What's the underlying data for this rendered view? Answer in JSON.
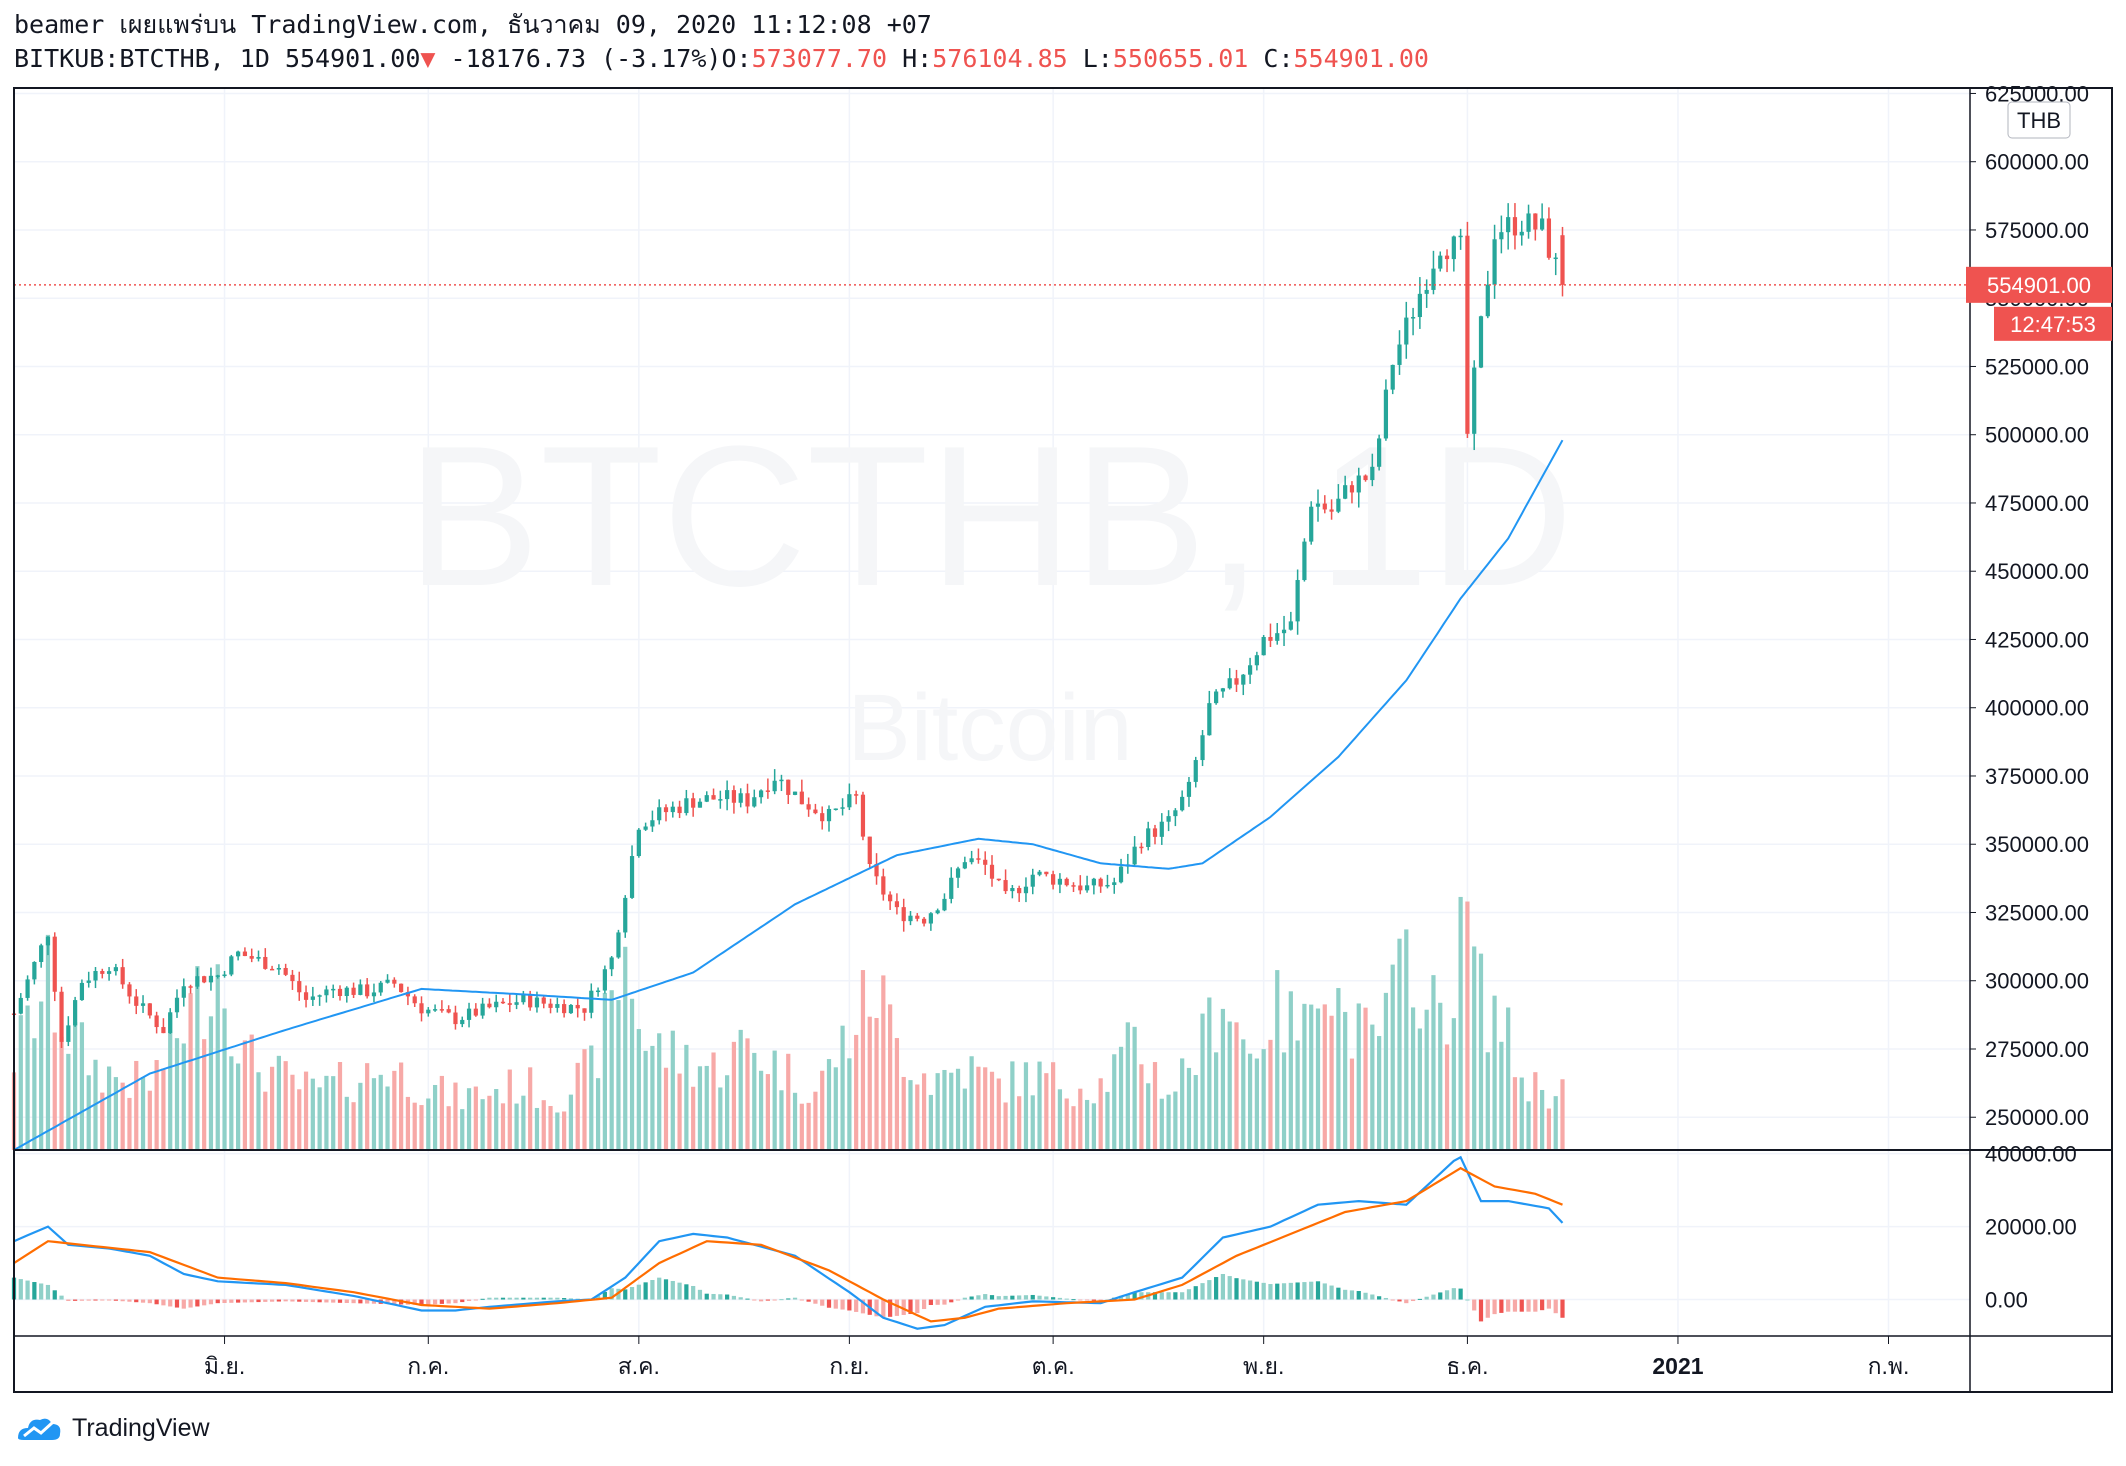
{
  "header": {
    "publish_line": "beamer เผยแพร่บน TradingView.com, ธันวาคม 09, 2020 11:12:08 +07",
    "symbol": "BITKUB:BTCTHB, 1D",
    "last": "554901.00",
    "arrow": "▼",
    "change": "-18176.73 (-3.17%)",
    "o_label": "O:",
    "o_value": "573077.70",
    "h_label": "H:",
    "h_value": "576104.85",
    "l_label": "L:",
    "l_value": "550655.01",
    "c_label": "C:",
    "c_value": "554901.00"
  },
  "watermark": {
    "symbol": "BTCTHB, 1D",
    "name": "Bitcoin"
  },
  "currency_badge": "THB",
  "price_label": "554901.00",
  "countdown_label": "12:47:53",
  "footer": {
    "brand": "TradingView"
  },
  "colors": {
    "up": "#26a69a",
    "down": "#ef5350",
    "up_volume": "#8fd0c8",
    "down_volume": "#f7a9a7",
    "ma": "#2196f3",
    "signal": "#ff6d00",
    "grid": "#f0f3fa"
  },
  "chart_data": [
    {
      "type": "candlestick",
      "y_ticks": [
        250000,
        275000,
        300000,
        325000,
        350000,
        375000,
        400000,
        425000,
        450000,
        475000,
        500000,
        525000,
        550000,
        575000,
        600000,
        625000
      ],
      "y_tick_labels": [
        "250000.00",
        "275000.00",
        "300000.00",
        "325000.00",
        "350000.00",
        "375000.00",
        "400000.00",
        "425000.00",
        "450000.00",
        "475000.00",
        "500000.00",
        "525000.00",
        "550000.00",
        "575000.00",
        "600000.00",
        "625000.00"
      ],
      "ylim": [
        238000,
        627000
      ],
      "x_ticks": [
        {
          "label": "มิ.ย.",
          "day": 31
        },
        {
          "label": "ก.ค.",
          "day": 61
        },
        {
          "label": "ส.ค.",
          "day": 92
        },
        {
          "label": "ก.ย.",
          "day": 123
        },
        {
          "label": "ต.ค.",
          "day": 153
        },
        {
          "label": "พ.ย.",
          "day": 184
        },
        {
          "label": "ธ.ค.",
          "day": 214
        },
        {
          "label": "2021",
          "day": 245
        },
        {
          "label": "ก.พ.",
          "day": 276
        }
      ],
      "xlim": [
        0,
        288
      ],
      "last_price": 554901,
      "anchors": [
        [
          0,
          288000
        ],
        [
          5,
          318000
        ],
        [
          7,
          278000
        ],
        [
          10,
          300000
        ],
        [
          14,
          306000
        ],
        [
          18,
          292000
        ],
        [
          22,
          282000
        ],
        [
          25,
          300000
        ],
        [
          30,
          302000
        ],
        [
          33,
          310000
        ],
        [
          39,
          305000
        ],
        [
          43,
          293000
        ],
        [
          47,
          297000
        ],
        [
          52,
          296000
        ],
        [
          56,
          299000
        ],
        [
          60,
          290000
        ],
        [
          65,
          286000
        ],
        [
          70,
          290000
        ],
        [
          75,
          293000
        ],
        [
          80,
          291000
        ],
        [
          84,
          290000
        ],
        [
          88,
          308000
        ],
        [
          92,
          358000
        ],
        [
          96,
          362000
        ],
        [
          100,
          366000
        ],
        [
          104,
          367000
        ],
        [
          108,
          366000
        ],
        [
          112,
          375000
        ],
        [
          116,
          366000
        ],
        [
          120,
          360000
        ],
        [
          124,
          367000
        ],
        [
          126,
          340000
        ],
        [
          130,
          325000
        ],
        [
          134,
          323000
        ],
        [
          137,
          331000
        ],
        [
          140,
          345000
        ],
        [
          143,
          342000
        ],
        [
          146,
          330000
        ],
        [
          150,
          339000
        ],
        [
          154,
          337000
        ],
        [
          158,
          334000
        ],
        [
          162,
          336000
        ],
        [
          166,
          352000
        ],
        [
          170,
          358000
        ],
        [
          173,
          370000
        ],
        [
          176,
          400000
        ],
        [
          180,
          410000
        ],
        [
          184,
          425000
        ],
        [
          188,
          430000
        ],
        [
          191,
          476000
        ],
        [
          194,
          472000
        ],
        [
          197,
          482000
        ],
        [
          200,
          485000
        ],
        [
          203,
          527000
        ],
        [
          207,
          552000
        ],
        [
          210,
          570000
        ],
        [
          213,
          568000
        ],
        [
          214,
          500000
        ],
        [
          216,
          540000
        ],
        [
          218,
          575000
        ],
        [
          222,
          578000
        ],
        [
          225,
          575000
        ],
        [
          228,
          555000
        ]
      ],
      "last_candle": {
        "open": 573077.7,
        "high": 576104.85,
        "low": 550655.01,
        "close": 554901.0
      },
      "ma_anchors": [
        [
          0,
          238000
        ],
        [
          20,
          266000
        ],
        [
          40,
          282000
        ],
        [
          60,
          297000
        ],
        [
          75,
          295000
        ],
        [
          88,
          293000
        ],
        [
          100,
          303000
        ],
        [
          115,
          328000
        ],
        [
          130,
          346000
        ],
        [
          142,
          352000
        ],
        [
          150,
          350000
        ],
        [
          160,
          343000
        ],
        [
          170,
          341000
        ],
        [
          175,
          343000
        ],
        [
          185,
          360000
        ],
        [
          195,
          382000
        ],
        [
          205,
          410000
        ],
        [
          213,
          440000
        ],
        [
          220,
          462000
        ],
        [
          228,
          498000
        ]
      ],
      "volume_anchors": [
        [
          0,
          40
        ],
        [
          5,
          70
        ],
        [
          8,
          50
        ],
        [
          12,
          35
        ],
        [
          16,
          30
        ],
        [
          20,
          28
        ],
        [
          30,
          80
        ],
        [
          34,
          40
        ],
        [
          40,
          30
        ],
        [
          44,
          25
        ],
        [
          50,
          30
        ],
        [
          55,
          35
        ],
        [
          60,
          28
        ],
        [
          65,
          22
        ],
        [
          70,
          25
        ],
        [
          75,
          28
        ],
        [
          80,
          22
        ],
        [
          85,
          35
        ],
        [
          88,
          60
        ],
        [
          90,
          85
        ],
        [
          93,
          45
        ],
        [
          98,
          40
        ],
        [
          103,
          35
        ],
        [
          108,
          45
        ],
        [
          113,
          35
        ],
        [
          118,
          25
        ],
        [
          123,
          50
        ],
        [
          127,
          70
        ],
        [
          130,
          45
        ],
        [
          135,
          30
        ],
        [
          140,
          35
        ],
        [
          145,
          28
        ],
        [
          150,
          32
        ],
        [
          155,
          28
        ],
        [
          160,
          28
        ],
        [
          165,
          45
        ],
        [
          170,
          25
        ],
        [
          175,
          45
        ],
        [
          178,
          70
        ],
        [
          182,
          40
        ],
        [
          185,
          60
        ],
        [
          190,
          50
        ],
        [
          192,
          90
        ],
        [
          196,
          55
        ],
        [
          200,
          45
        ],
        [
          204,
          70
        ],
        [
          206,
          90
        ],
        [
          208,
          55
        ],
        [
          212,
          70
        ],
        [
          214,
          100
        ],
        [
          216,
          65
        ],
        [
          219,
          55
        ],
        [
          222,
          30
        ],
        [
          226,
          25
        ],
        [
          228,
          35
        ]
      ]
    },
    {
      "type": "line",
      "y_ticks": [
        0,
        20000,
        40000
      ],
      "y_tick_labels": [
        "0.00",
        "20000.00",
        "40000.00"
      ],
      "ylim": [
        -10000,
        41000
      ],
      "macd_anchors": [
        [
          0,
          16000
        ],
        [
          5,
          20000
        ],
        [
          8,
          15000
        ],
        [
          14,
          14000
        ],
        [
          20,
          12000
        ],
        [
          25,
          7000
        ],
        [
          30,
          5000
        ],
        [
          40,
          4000
        ],
        [
          50,
          1000
        ],
        [
          60,
          -3000
        ],
        [
          65,
          -3000
        ],
        [
          70,
          -2000
        ],
        [
          80,
          -500
        ],
        [
          85,
          0
        ],
        [
          90,
          6000
        ],
        [
          95,
          16000
        ],
        [
          100,
          18000
        ],
        [
          105,
          17000
        ],
        [
          115,
          12000
        ],
        [
          123,
          2000
        ],
        [
          128,
          -5000
        ],
        [
          133,
          -8000
        ],
        [
          137,
          -7000
        ],
        [
          143,
          -2000
        ],
        [
          150,
          -500
        ],
        [
          160,
          -1000
        ],
        [
          165,
          2000
        ],
        [
          172,
          6000
        ],
        [
          178,
          17000
        ],
        [
          185,
          20000
        ],
        [
          192,
          26000
        ],
        [
          198,
          27000
        ],
        [
          205,
          26000
        ],
        [
          212,
          38000
        ],
        [
          213,
          39000
        ],
        [
          216,
          27000
        ],
        [
          220,
          27000
        ],
        [
          226,
          25000
        ],
        [
          228,
          21000
        ]
      ],
      "signal_anchors": [
        [
          0,
          10000
        ],
        [
          5,
          16000
        ],
        [
          10,
          15000
        ],
        [
          20,
          13000
        ],
        [
          30,
          6000
        ],
        [
          40,
          4500
        ],
        [
          50,
          2000
        ],
        [
          60,
          -1500
        ],
        [
          70,
          -2500
        ],
        [
          80,
          -1000
        ],
        [
          88,
          500
        ],
        [
          95,
          10000
        ],
        [
          102,
          16000
        ],
        [
          110,
          15000
        ],
        [
          120,
          8000
        ],
        [
          128,
          0
        ],
        [
          135,
          -6000
        ],
        [
          140,
          -5000
        ],
        [
          145,
          -2500
        ],
        [
          155,
          -1000
        ],
        [
          165,
          0
        ],
        [
          172,
          4000
        ],
        [
          180,
          12000
        ],
        [
          188,
          18000
        ],
        [
          196,
          24000
        ],
        [
          205,
          27000
        ],
        [
          213,
          36000
        ],
        [
          218,
          31000
        ],
        [
          224,
          29000
        ],
        [
          228,
          26000
        ]
      ]
    }
  ]
}
